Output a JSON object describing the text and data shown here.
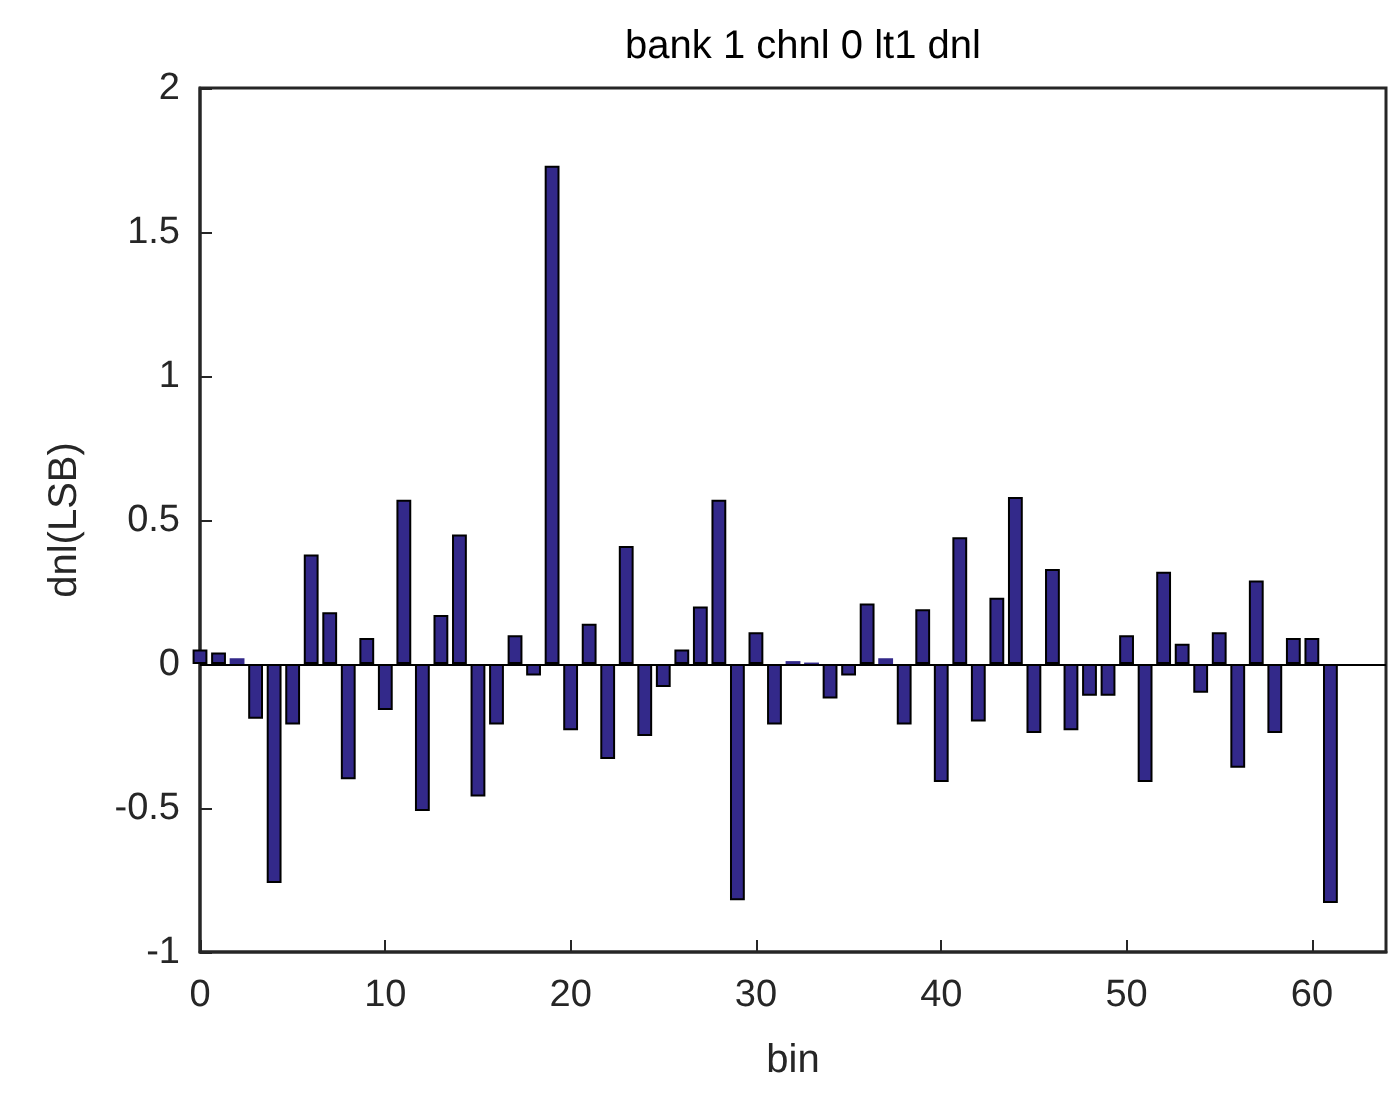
{
  "chart_data": {
    "type": "bar",
    "title": "bank 1 chnl 0 lt1 dnl",
    "xlabel": "bin",
    "ylabel": "dnl(LSB)",
    "x": [
      0,
      1,
      2,
      3,
      4,
      5,
      6,
      7,
      8,
      9,
      10,
      11,
      12,
      13,
      14,
      15,
      16,
      17,
      18,
      19,
      20,
      21,
      22,
      23,
      24,
      25,
      26,
      27,
      28,
      29,
      30,
      31,
      32,
      33,
      34,
      35,
      36,
      37,
      38,
      39,
      40,
      41,
      42,
      43,
      44,
      45,
      46,
      47,
      48,
      49,
      50,
      51,
      52,
      53,
      54,
      55,
      56,
      57,
      58,
      59,
      60,
      61
    ],
    "values": [
      0.05,
      0.04,
      0.02,
      -0.19,
      -0.76,
      -0.21,
      0.38,
      0.18,
      -0.4,
      0.09,
      -0.16,
      0.57,
      -0.51,
      0.17,
      0.45,
      -0.46,
      -0.21,
      0.1,
      -0.04,
      1.73,
      -0.23,
      0.14,
      -0.33,
      0.41,
      -0.25,
      -0.08,
      0.05,
      0.2,
      0.57,
      -0.82,
      0.11,
      -0.21,
      0.01,
      0.005,
      -0.12,
      -0.04,
      0.21,
      0.02,
      -0.21,
      0.19,
      -0.41,
      0.44,
      -0.2,
      0.23,
      0.58,
      -0.24,
      0.33,
      -0.23,
      -0.11,
      -0.11,
      0.1,
      -0.41,
      0.32,
      0.07,
      -0.1,
      0.11,
      -0.36,
      0.29,
      -0.24,
      0.09,
      0.09,
      -0.83
    ],
    "color": "#33298a",
    "xlim": [
      0,
      64
    ],
    "xticks": [
      0,
      10,
      20,
      30,
      40,
      50,
      60
    ],
    "ylim": [
      -1,
      2
    ],
    "yticks": [
      -1,
      -0.5,
      0,
      0.5,
      1,
      1.5,
      2
    ],
    "ref_lines": [
      {
        "axis": "y",
        "value": 0,
        "color": "#000000"
      }
    ]
  }
}
